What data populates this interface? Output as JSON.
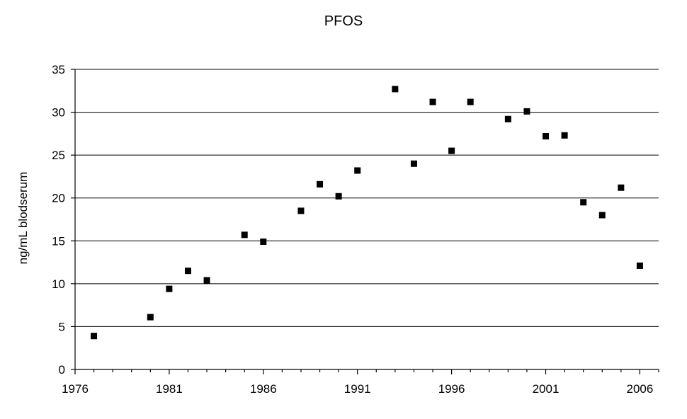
{
  "chart_data": {
    "type": "scatter",
    "title": "PFOS",
    "ylabel": "ng/mL  blodserum",
    "xlabel": "",
    "xlim": [
      1976,
      2007
    ],
    "ylim": [
      0,
      35
    ],
    "x_ticks": [
      1976,
      1981,
      1986,
      1991,
      1996,
      2001,
      2006
    ],
    "y_ticks": [
      0,
      5,
      10,
      15,
      20,
      25,
      30,
      35
    ],
    "grid": "horizontal",
    "marker": "square",
    "series": [
      {
        "points": [
          {
            "x": 1977,
            "y": 3.9
          },
          {
            "x": 1980,
            "y": 6.1
          },
          {
            "x": 1981,
            "y": 9.4
          },
          {
            "x": 1982,
            "y": 11.5
          },
          {
            "x": 1983,
            "y": 10.4
          },
          {
            "x": 1985,
            "y": 15.7
          },
          {
            "x": 1986,
            "y": 14.9
          },
          {
            "x": 1988,
            "y": 18.5
          },
          {
            "x": 1989,
            "y": 21.6
          },
          {
            "x": 1990,
            "y": 20.2
          },
          {
            "x": 1991,
            "y": 23.2
          },
          {
            "x": 1993,
            "y": 32.7
          },
          {
            "x": 1994,
            "y": 24.0
          },
          {
            "x": 1995,
            "y": 31.2
          },
          {
            "x": 1996,
            "y": 25.5
          },
          {
            "x": 1997,
            "y": 31.2
          },
          {
            "x": 1999,
            "y": 29.2
          },
          {
            "x": 2000,
            "y": 30.1
          },
          {
            "x": 2001,
            "y": 27.2
          },
          {
            "x": 2002,
            "y": 27.3
          },
          {
            "x": 2003,
            "y": 19.5
          },
          {
            "x": 2004,
            "y": 18.0
          },
          {
            "x": 2005,
            "y": 21.2
          },
          {
            "x": 2006,
            "y": 12.1
          }
        ]
      }
    ]
  }
}
